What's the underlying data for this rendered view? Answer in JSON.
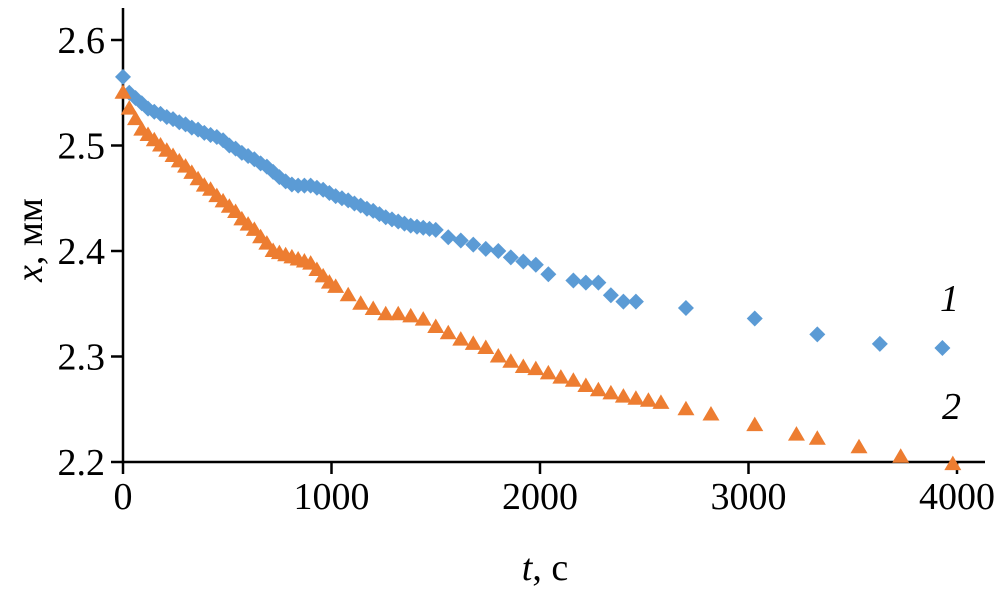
{
  "chart_data": {
    "type": "scatter",
    "title": "",
    "xlabel": "t, с",
    "ylabel": "x, мм",
    "xlabel_var": "t",
    "xlabel_rest": ", с",
    "ylabel_var": "x",
    "ylabel_rest": ", мм",
    "xlim": [
      0,
      4000
    ],
    "ylim": [
      2.2,
      2.6
    ],
    "grid": false,
    "legend_position": "inline-annotations-right",
    "x_ticks": [
      0,
      1000,
      2000,
      3000,
      4000
    ],
    "x_tick_labels": [
      "0",
      "1000",
      "2000",
      "3000",
      "4000"
    ],
    "y_ticks": [
      2.2,
      2.3,
      2.4,
      2.5,
      2.6
    ],
    "y_tick_labels": [
      "2.2",
      "2.3",
      "2.4",
      "2.5",
      "2.6"
    ],
    "axis_color": "#000000",
    "series": [
      {
        "name": "1",
        "label": "1",
        "marker": "diamond",
        "color": "#5B9BD5",
        "x": [
          0,
          30,
          60,
          90,
          120,
          150,
          180,
          210,
          240,
          270,
          300,
          330,
          360,
          390,
          420,
          450,
          480,
          510,
          540,
          570,
          600,
          630,
          660,
          690,
          720,
          750,
          780,
          810,
          840,
          870,
          900,
          930,
          960,
          990,
          1020,
          1050,
          1080,
          1110,
          1140,
          1170,
          1200,
          1230,
          1260,
          1290,
          1320,
          1350,
          1380,
          1410,
          1440,
          1470,
          1500,
          1560,
          1620,
          1680,
          1740,
          1800,
          1860,
          1920,
          1980,
          2040,
          2160,
          2220,
          2280,
          2340,
          2400,
          2460,
          2700,
          3030,
          3330,
          3630,
          3930
        ],
        "y": [
          2.565,
          2.55,
          2.545,
          2.54,
          2.535,
          2.532,
          2.53,
          2.527,
          2.525,
          2.522,
          2.52,
          2.517,
          2.515,
          2.512,
          2.51,
          2.508,
          2.505,
          2.5,
          2.497,
          2.493,
          2.49,
          2.487,
          2.483,
          2.48,
          2.475,
          2.47,
          2.466,
          2.463,
          2.462,
          2.462,
          2.462,
          2.46,
          2.458,
          2.455,
          2.452,
          2.45,
          2.448,
          2.445,
          2.443,
          2.44,
          2.438,
          2.435,
          2.432,
          2.43,
          2.428,
          2.426,
          2.424,
          2.423,
          2.422,
          2.421,
          2.42,
          2.413,
          2.41,
          2.406,
          2.402,
          2.4,
          2.394,
          2.39,
          2.387,
          2.378,
          2.372,
          2.37,
          2.37,
          2.358,
          2.352,
          2.352,
          2.346,
          2.336,
          2.321,
          2.312,
          2.308
        ]
      },
      {
        "name": "2",
        "label": "2",
        "marker": "triangle",
        "color": "#ED7D31",
        "x": [
          0,
          30,
          60,
          90,
          120,
          150,
          180,
          210,
          240,
          270,
          300,
          330,
          360,
          390,
          420,
          450,
          480,
          510,
          540,
          570,
          600,
          630,
          660,
          690,
          720,
          750,
          780,
          810,
          840,
          870,
          900,
          930,
          960,
          990,
          1020,
          1080,
          1140,
          1200,
          1260,
          1320,
          1380,
          1440,
          1500,
          1560,
          1620,
          1680,
          1740,
          1800,
          1860,
          1920,
          1980,
          2040,
          2100,
          2160,
          2220,
          2280,
          2340,
          2400,
          2460,
          2520,
          2580,
          2700,
          2820,
          3030,
          3230,
          3330,
          3530,
          3730,
          3980
        ],
        "y": [
          2.55,
          2.535,
          2.525,
          2.515,
          2.51,
          2.505,
          2.5,
          2.495,
          2.49,
          2.485,
          2.48,
          2.474,
          2.468,
          2.462,
          2.458,
          2.452,
          2.447,
          2.442,
          2.437,
          2.43,
          2.425,
          2.42,
          2.413,
          2.407,
          2.4,
          2.398,
          2.396,
          2.394,
          2.392,
          2.39,
          2.388,
          2.382,
          2.376,
          2.37,
          2.366,
          2.358,
          2.35,
          2.345,
          2.34,
          2.34,
          2.338,
          2.335,
          2.328,
          2.322,
          2.316,
          2.312,
          2.308,
          2.3,
          2.295,
          2.29,
          2.288,
          2.284,
          2.28,
          2.277,
          2.272,
          2.268,
          2.265,
          2.262,
          2.26,
          2.258,
          2.256,
          2.25,
          2.245,
          2.235,
          2.226,
          2.222,
          2.214,
          2.205,
          2.198
        ]
      }
    ]
  }
}
